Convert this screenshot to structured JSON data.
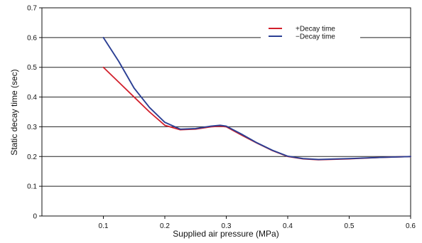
{
  "chart_data": {
    "type": "line",
    "title": "",
    "xlabel": "Supplied air pressure (MPa)",
    "ylabel": "Static decay time (sec)",
    "xlim": [
      0,
      0.6
    ],
    "ylim": [
      0,
      0.7
    ],
    "x_ticks": [
      "0.1",
      "0.2",
      "0.3",
      "0.4",
      "0.5",
      "0.6"
    ],
    "y_ticks": [
      "0",
      "0.1",
      "0.2",
      "0.3",
      "0.4",
      "0.5",
      "0.6",
      "0.7"
    ],
    "grid": "horizontal",
    "legend_position": "top-right",
    "series": [
      {
        "name": "+Decay time",
        "color": "#d21f2b",
        "points": [
          {
            "x": 0.1,
            "y": 0.5
          },
          {
            "x": 0.125,
            "y": 0.45
          },
          {
            "x": 0.15,
            "y": 0.4
          },
          {
            "x": 0.175,
            "y": 0.35
          },
          {
            "x": 0.2,
            "y": 0.305
          },
          {
            "x": 0.225,
            "y": 0.29
          },
          {
            "x": 0.25,
            "y": 0.292
          },
          {
            "x": 0.275,
            "y": 0.3
          },
          {
            "x": 0.29,
            "y": 0.302
          },
          {
            "x": 0.3,
            "y": 0.3
          },
          {
            "x": 0.325,
            "y": 0.272
          },
          {
            "x": 0.35,
            "y": 0.245
          },
          {
            "x": 0.375,
            "y": 0.22
          },
          {
            "x": 0.4,
            "y": 0.2
          },
          {
            "x": 0.425,
            "y": 0.192
          },
          {
            "x": 0.45,
            "y": 0.189
          },
          {
            "x": 0.5,
            "y": 0.192
          },
          {
            "x": 0.55,
            "y": 0.197
          },
          {
            "x": 0.6,
            "y": 0.2
          }
        ]
      },
      {
        "name": "−Decay time",
        "color": "#2b3f94",
        "points": [
          {
            "x": 0.1,
            "y": 0.6
          },
          {
            "x": 0.125,
            "y": 0.52
          },
          {
            "x": 0.15,
            "y": 0.43
          },
          {
            "x": 0.175,
            "y": 0.365
          },
          {
            "x": 0.2,
            "y": 0.315
          },
          {
            "x": 0.225,
            "y": 0.292
          },
          {
            "x": 0.25,
            "y": 0.294
          },
          {
            "x": 0.275,
            "y": 0.302
          },
          {
            "x": 0.29,
            "y": 0.305
          },
          {
            "x": 0.3,
            "y": 0.302
          },
          {
            "x": 0.325,
            "y": 0.275
          },
          {
            "x": 0.35,
            "y": 0.246
          },
          {
            "x": 0.375,
            "y": 0.221
          },
          {
            "x": 0.4,
            "y": 0.201
          },
          {
            "x": 0.425,
            "y": 0.193
          },
          {
            "x": 0.45,
            "y": 0.19
          },
          {
            "x": 0.5,
            "y": 0.193
          },
          {
            "x": 0.55,
            "y": 0.197
          },
          {
            "x": 0.6,
            "y": 0.2
          }
        ]
      }
    ]
  }
}
